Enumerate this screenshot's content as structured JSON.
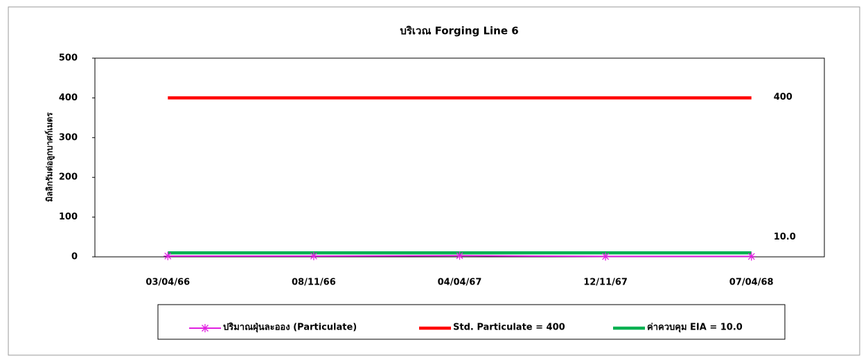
{
  "chart_data": {
    "type": "line",
    "title": "บริเวณ Forging Line 6",
    "ylabel": "มิลลิกรัมต่อลูกบาศก์เมตร",
    "categories": [
      "03/04/66",
      "08/11/66",
      "04/04/67",
      "12/11/67",
      "07/04/68"
    ],
    "series": [
      {
        "name": "ปริมาณฝุ่นละออง (Particulate)",
        "color": "#e020e0",
        "values": [
          2,
          2,
          3,
          1,
          1
        ],
        "marker": "asterisk"
      },
      {
        "name": "Std. Particulate = 400",
        "color": "#ff0000",
        "values": [
          400,
          400,
          400,
          400,
          400
        ]
      },
      {
        "name": "ค่าควบคุม EIA = 10.0",
        "color": "#00b050",
        "values": [
          10,
          10,
          10,
          10,
          10
        ],
        "value_labels": [
          null,
          null,
          null,
          null,
          "10.0"
        ]
      }
    ],
    "ylim": [
      0,
      500
    ],
    "yticks": [
      0,
      100,
      200,
      300,
      400,
      500
    ],
    "grid": false,
    "legend": "bottom"
  }
}
